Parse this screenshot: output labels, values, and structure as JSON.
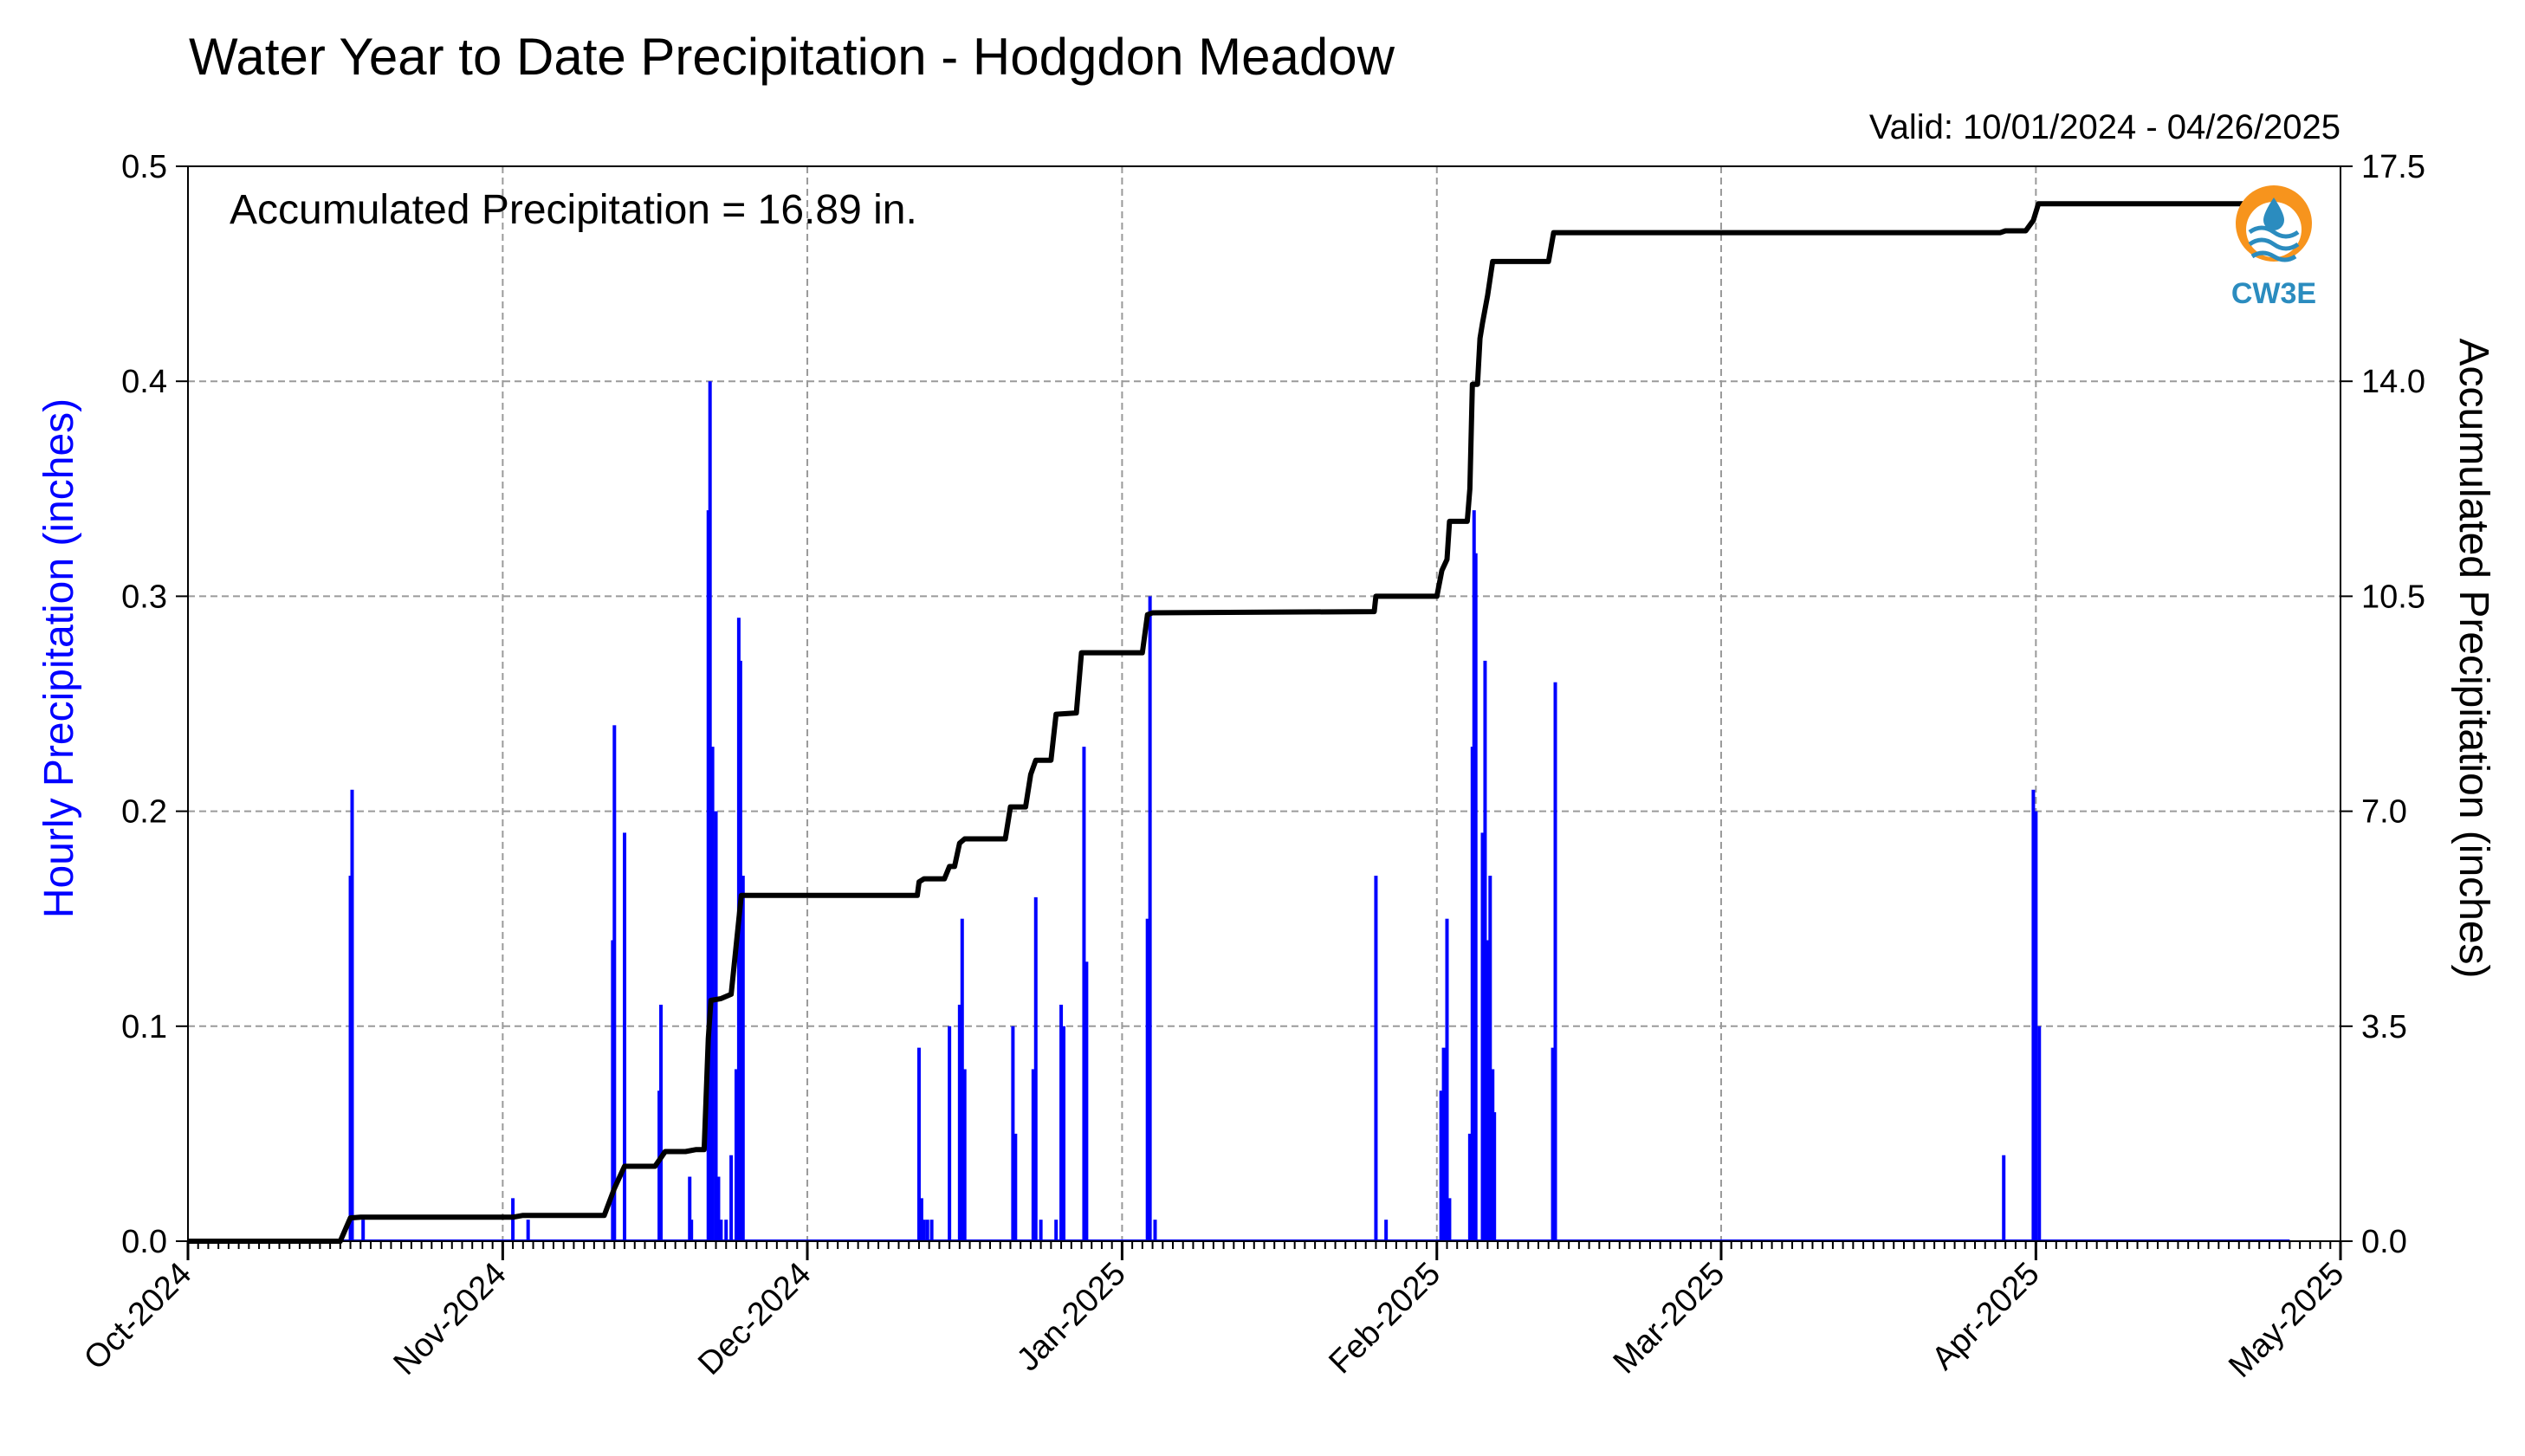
{
  "chart_data": {
    "type": "bar",
    "title": "Water Year to Date Precipitation - Hodgdon Meadow",
    "subtitle": "Valid: 10/01/2024 - 04/26/2025",
    "annotation": "Accumulated Precipitation = 16.89 in.",
    "logo_text": "CW3E",
    "y_left": {
      "label": "Hourly Precipitation (inches)",
      "lim": [
        0,
        0.5
      ],
      "ticks": [
        "0.0",
        "0.1",
        "0.2",
        "0.3",
        "0.4",
        "0.5"
      ],
      "color": "#0000ff"
    },
    "y_right": {
      "label": "Accumulated Precipitation (inches)",
      "lim": [
        0,
        17.5
      ],
      "ticks": [
        "0.0",
        "3.5",
        "7.0",
        "10.5",
        "14.0",
        "17.5"
      ],
      "color": "#000000"
    },
    "x": {
      "start": "2024-10-01",
      "end": "2025-05-01",
      "tick_labels": [
        "Oct-2024",
        "Nov-2024",
        "Dec-2024",
        "Jan-2025",
        "Feb-2025",
        "Mar-2025",
        "Apr-2025",
        "May-2025"
      ],
      "tick_dates": [
        "2024-10-01",
        "2024-11-01",
        "2024-12-01",
        "2025-01-01",
        "2025-02-01",
        "2025-03-01",
        "2025-04-01",
        "2025-05-01"
      ]
    },
    "grid": true,
    "series": [
      {
        "type": "bar",
        "color": "#0000ff",
        "points": [
          [
            "2024-10-17T00:00",
            0.17
          ],
          [
            "2024-10-17T04:00",
            0.21
          ],
          [
            "2024-10-18T06:00",
            0.01
          ],
          [
            "2024-11-02T00:00",
            0.02
          ],
          [
            "2024-11-03T12:00",
            0.01
          ],
          [
            "2024-11-11T20:00",
            0.14
          ],
          [
            "2024-11-12T00:00",
            0.24
          ],
          [
            "2024-11-13T00:00",
            0.19
          ],
          [
            "2024-11-16T10:00",
            0.07
          ],
          [
            "2024-11-16T14:00",
            0.11
          ],
          [
            "2024-11-19T10:00",
            0.03
          ],
          [
            "2024-11-19T14:00",
            0.01
          ],
          [
            "2024-11-21T06:00",
            0.34
          ],
          [
            "2024-11-21T10:00",
            0.4
          ],
          [
            "2024-11-21T16:00",
            0.23
          ],
          [
            "2024-11-22T00:00",
            0.2
          ],
          [
            "2024-11-22T06:00",
            0.03
          ],
          [
            "2024-11-22T12:00",
            0.01
          ],
          [
            "2024-11-23T00:00",
            0.01
          ],
          [
            "2024-11-23T12:00",
            0.04
          ],
          [
            "2024-11-24T00:00",
            0.08
          ],
          [
            "2024-11-24T06:00",
            0.29
          ],
          [
            "2024-11-24T10:00",
            0.27
          ],
          [
            "2024-11-24T16:00",
            0.17
          ],
          [
            "2024-12-12T00:00",
            0.09
          ],
          [
            "2024-12-12T06:00",
            0.02
          ],
          [
            "2024-12-12T12:00",
            0.01
          ],
          [
            "2024-12-12T20:00",
            0.01
          ],
          [
            "2024-12-13T06:00",
            0.01
          ],
          [
            "2024-12-15T00:00",
            0.1
          ],
          [
            "2024-12-16T00:00",
            0.11
          ],
          [
            "2024-12-16T06:00",
            0.15
          ],
          [
            "2024-12-16T12:00",
            0.08
          ],
          [
            "2024-12-21T06:00",
            0.1
          ],
          [
            "2024-12-21T12:00",
            0.05
          ],
          [
            "2024-12-23T06:00",
            0.08
          ],
          [
            "2024-12-23T12:00",
            0.16
          ],
          [
            "2024-12-24T00:00",
            0.01
          ],
          [
            "2024-12-25T12:00",
            0.01
          ],
          [
            "2024-12-26T00:00",
            0.11
          ],
          [
            "2024-12-26T06:00",
            0.1
          ],
          [
            "2024-12-28T06:00",
            0.23
          ],
          [
            "2024-12-28T12:00",
            0.13
          ],
          [
            "2025-01-03T12:00",
            0.15
          ],
          [
            "2025-01-03T18:00",
            0.3
          ],
          [
            "2025-01-04T06:00",
            0.01
          ],
          [
            "2025-01-26T00:00",
            0.17
          ],
          [
            "2025-01-27T00:00",
            0.01
          ],
          [
            "2025-02-01T10:00",
            0.07
          ],
          [
            "2025-02-01T16:00",
            0.09
          ],
          [
            "2025-02-02T00:00",
            0.15
          ],
          [
            "2025-02-02T06:00",
            0.02
          ],
          [
            "2025-02-04T06:00",
            0.05
          ],
          [
            "2025-02-04T12:00",
            0.23
          ],
          [
            "2025-02-04T16:00",
            0.34
          ],
          [
            "2025-02-04T20:00",
            0.32
          ],
          [
            "2025-02-05T12:00",
            0.19
          ],
          [
            "2025-02-05T18:00",
            0.27
          ],
          [
            "2025-02-06T00:00",
            0.14
          ],
          [
            "2025-02-06T06:00",
            0.17
          ],
          [
            "2025-02-06T12:00",
            0.08
          ],
          [
            "2025-02-06T16:00",
            0.06
          ],
          [
            "2025-02-12T10:00",
            0.09
          ],
          [
            "2025-02-12T16:00",
            0.26
          ],
          [
            "2025-03-28T20:00",
            0.04
          ],
          [
            "2025-03-31T18:00",
            0.21
          ],
          [
            "2025-04-01T00:00",
            0.2
          ],
          [
            "2025-04-01T08:00",
            0.1
          ]
        ]
      },
      {
        "type": "line",
        "color": "#000000",
        "points": [
          [
            "2024-10-01",
            0
          ],
          [
            "2024-10-16",
            0
          ],
          [
            "2024-10-17",
            0.38
          ],
          [
            "2024-10-18",
            0.39
          ],
          [
            "2024-11-02",
            0.39
          ],
          [
            "2024-11-03",
            0.42
          ],
          [
            "2024-11-11",
            0.42
          ],
          [
            "2024-11-12",
            0.86
          ],
          [
            "2024-11-13",
            1.22
          ],
          [
            "2024-11-16",
            1.22
          ],
          [
            "2024-11-17",
            1.46
          ],
          [
            "2024-11-19",
            1.46
          ],
          [
            "2024-11-20",
            1.49
          ],
          [
            "2024-11-20T20:00",
            1.49
          ],
          [
            "2024-11-21T06:00",
            3.3
          ],
          [
            "2024-11-21T12:00",
            3.92
          ],
          [
            "2024-11-22T12:00",
            3.95
          ],
          [
            "2024-11-23T12:00",
            4.02
          ],
          [
            "2024-11-24T12:00",
            5.63
          ],
          [
            "2024-12-11T20:00",
            5.63
          ],
          [
            "2024-12-12",
            5.85
          ],
          [
            "2024-12-12T12:00",
            5.9
          ],
          [
            "2024-12-14T12:00",
            5.9
          ],
          [
            "2024-12-15",
            6.1
          ],
          [
            "2024-12-15T12:00",
            6.1
          ],
          [
            "2024-12-16",
            6.48
          ],
          [
            "2024-12-16T12:00",
            6.55
          ],
          [
            "2024-12-20T12:00",
            6.55
          ],
          [
            "2024-12-21",
            7.07
          ],
          [
            "2024-12-22T12:00",
            7.07
          ],
          [
            "2024-12-23",
            7.6
          ],
          [
            "2024-12-23T12:00",
            7.83
          ],
          [
            "2024-12-25",
            7.83
          ],
          [
            "2024-12-25T12:00",
            8.58
          ],
          [
            "2024-12-27T12:00",
            8.6
          ],
          [
            "2024-12-28",
            9.58
          ],
          [
            "2025-01-03",
            9.58
          ],
          [
            "2025-01-03T12:00",
            10.2
          ],
          [
            "2025-01-04",
            10.23
          ],
          [
            "2025-01-25T20:00",
            10.25
          ],
          [
            "2025-01-26",
            10.5
          ],
          [
            "2025-02-01",
            10.5
          ],
          [
            "2025-02-01T12:00",
            10.92
          ],
          [
            "2025-02-02",
            11.1
          ],
          [
            "2025-02-02T06:00",
            11.72
          ],
          [
            "2025-02-04",
            11.72
          ],
          [
            "2025-02-04T06:00",
            12.25
          ],
          [
            "2025-02-04T12:00",
            13.95
          ],
          [
            "2025-02-05",
            13.95
          ],
          [
            "2025-02-05T06:00",
            14.7
          ],
          [
            "2025-02-05T12:00",
            14.95
          ],
          [
            "2025-02-06",
            15.4
          ],
          [
            "2025-02-06T12:00",
            15.95
          ],
          [
            "2025-02-12",
            15.95
          ],
          [
            "2025-02-12T12:00",
            16.42
          ],
          [
            "2025-03-28T12:00",
            16.42
          ],
          [
            "2025-03-29",
            16.45
          ],
          [
            "2025-03-31",
            16.45
          ],
          [
            "2025-03-31T18:00",
            16.62
          ],
          [
            "2025-04-01T06:00",
            16.89
          ],
          [
            "2025-04-26",
            16.89
          ]
        ]
      }
    ]
  }
}
